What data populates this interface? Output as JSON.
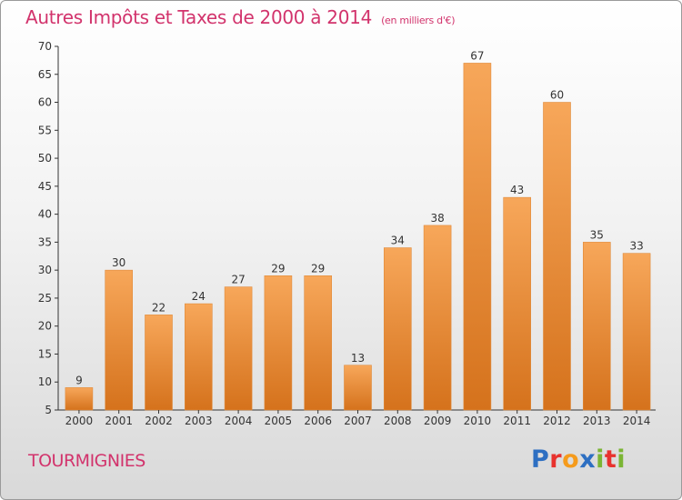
{
  "header": {
    "title": "Autres Impôts et Taxes de 2000 à 2014",
    "subtitle": "(en milliers d'€)"
  },
  "footer": {
    "commune": "TOURMIGNIES",
    "logo_letters": [
      "P",
      "r",
      "o",
      "x",
      "i",
      "t",
      "i"
    ]
  },
  "colors": {
    "title": "#d2336c",
    "bar_light": "#f7a75a",
    "bar_dark": "#d5721c",
    "logo": [
      "#2d6fc2",
      "#e8322e",
      "#f59b1c",
      "#2d6fc2",
      "#7bb534",
      "#e8322e",
      "#7bb534"
    ]
  },
  "chart_data": {
    "type": "bar",
    "title": "Autres Impôts et Taxes de 2000 à 2014",
    "subtitle": "(en milliers d'€)",
    "categories": [
      "2000",
      "2001",
      "2002",
      "2003",
      "2004",
      "2005",
      "2006",
      "2007",
      "2008",
      "2009",
      "2010",
      "2011",
      "2012",
      "2013",
      "2014"
    ],
    "values": [
      9,
      30,
      22,
      24,
      27,
      29,
      29,
      13,
      34,
      38,
      67,
      43,
      60,
      35,
      33
    ],
    "ylim": [
      5,
      70
    ],
    "yticks": [
      5,
      10,
      15,
      20,
      25,
      30,
      35,
      40,
      45,
      50,
      55,
      60,
      65,
      70
    ],
    "grid": false,
    "data_labels": true
  }
}
